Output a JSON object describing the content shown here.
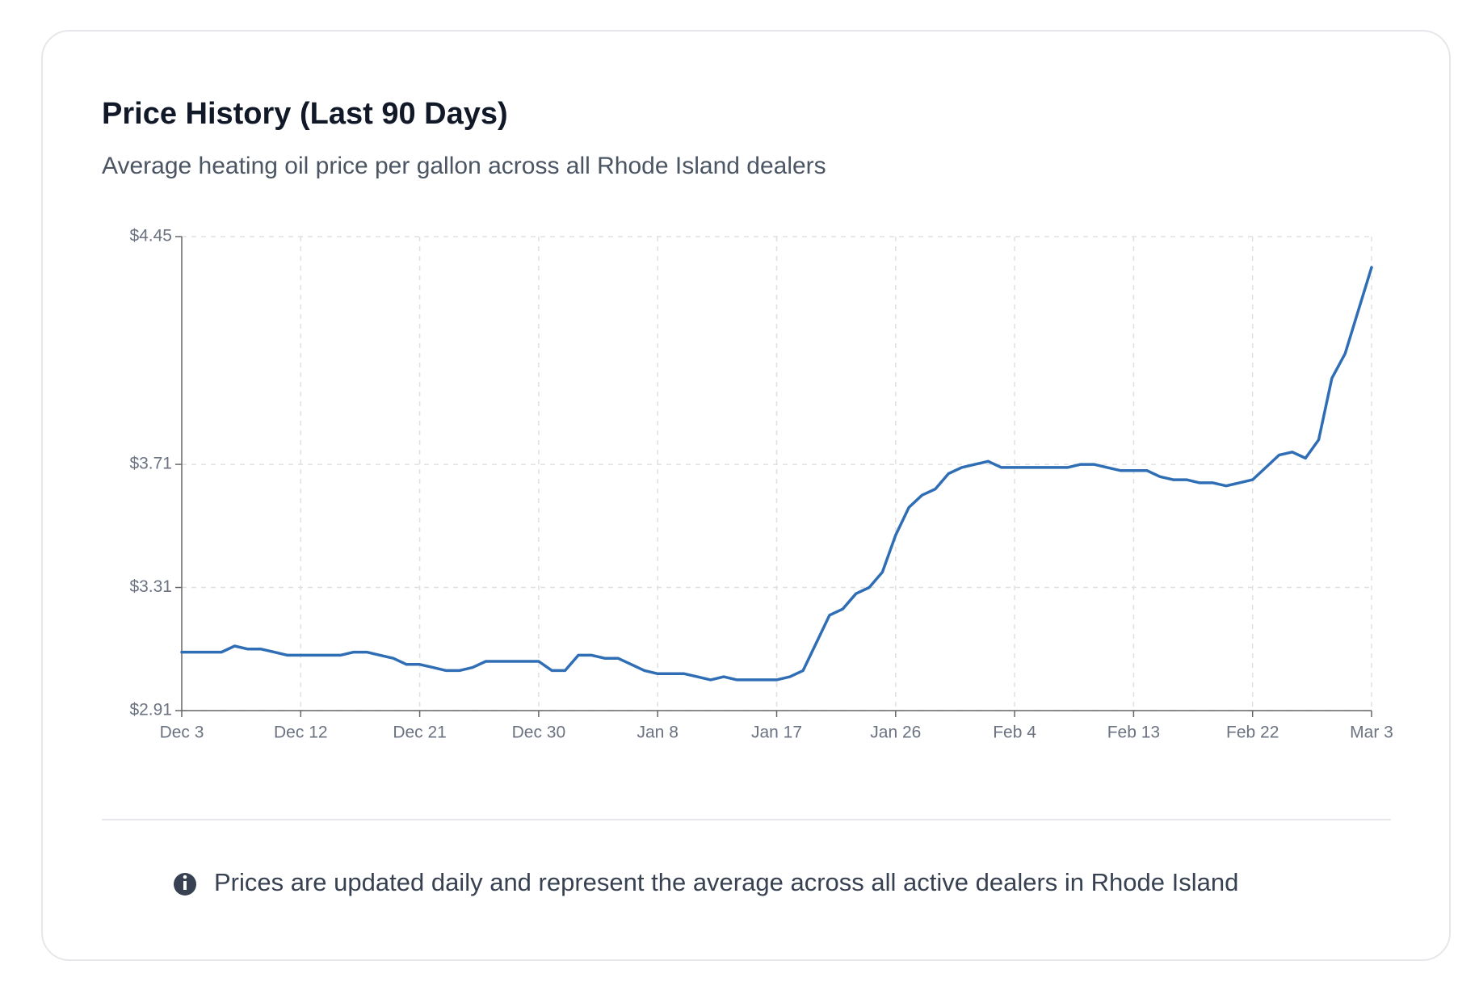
{
  "header": {
    "title": "Price History (Last 90 Days)",
    "subtitle": "Average heating oil price per gallon across all Rhode Island dealers"
  },
  "chart_data": {
    "type": "line",
    "color": "#2f6eb5",
    "grid": true,
    "categories": [
      "Dec 3",
      null,
      null,
      null,
      null,
      null,
      null,
      null,
      null,
      "Dec 12",
      null,
      null,
      null,
      null,
      null,
      null,
      null,
      null,
      "Dec 21",
      null,
      null,
      null,
      null,
      null,
      null,
      null,
      null,
      "Dec 30",
      null,
      null,
      null,
      null,
      null,
      null,
      null,
      null,
      "Jan 8",
      null,
      null,
      null,
      null,
      null,
      null,
      null,
      null,
      "Jan 17",
      null,
      null,
      null,
      null,
      null,
      null,
      null,
      null,
      "Jan 26",
      null,
      null,
      null,
      null,
      null,
      null,
      null,
      null,
      "Feb 4",
      null,
      null,
      null,
      null,
      null,
      null,
      null,
      null,
      "Feb 13",
      null,
      null,
      null,
      null,
      null,
      null,
      null,
      null,
      "Feb 22",
      null,
      null,
      null,
      null,
      null,
      null,
      null,
      null,
      "Mar 3"
    ],
    "values": [
      3.1,
      3.1,
      3.1,
      3.1,
      3.12,
      3.11,
      3.11,
      3.1,
      3.09,
      3.09,
      3.09,
      3.09,
      3.09,
      3.1,
      3.1,
      3.09,
      3.08,
      3.06,
      3.06,
      3.05,
      3.04,
      3.04,
      3.05,
      3.07,
      3.07,
      3.07,
      3.07,
      3.07,
      3.04,
      3.04,
      3.09,
      3.09,
      3.08,
      3.08,
      3.06,
      3.04,
      3.03,
      3.03,
      3.03,
      3.02,
      3.01,
      3.02,
      3.01,
      3.01,
      3.01,
      3.01,
      3.02,
      3.04,
      3.13,
      3.22,
      3.24,
      3.29,
      3.31,
      3.36,
      3.48,
      3.57,
      3.61,
      3.63,
      3.68,
      3.7,
      3.71,
      3.72,
      3.7,
      3.7,
      3.7,
      3.7,
      3.7,
      3.7,
      3.71,
      3.71,
      3.7,
      3.69,
      3.69,
      3.69,
      3.67,
      3.66,
      3.66,
      3.65,
      3.65,
      3.64,
      3.65,
      3.66,
      3.7,
      3.74,
      3.75,
      3.73,
      3.79,
      3.99,
      4.07,
      4.21,
      4.35
    ],
    "ylim": [
      2.91,
      4.45
    ],
    "yticks": [
      {
        "value": 2.91,
        "label": "$2.91"
      },
      {
        "value": 3.31,
        "label": "$3.31"
      },
      {
        "value": 3.71,
        "label": "$3.71"
      },
      {
        "value": 4.45,
        "label": "$4.45"
      }
    ]
  },
  "footer": {
    "note": "Prices are updated daily and represent the average across all active dealers in Rhode Island"
  }
}
